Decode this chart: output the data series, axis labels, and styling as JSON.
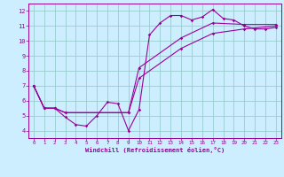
{
  "xlabel": "Windchill (Refroidissement éolien,°C)",
  "bg_color": "#cceeff",
  "line_color": "#990099",
  "grid_color": "#99cccc",
  "xlim": [
    -0.5,
    23.5
  ],
  "ylim": [
    3.5,
    12.5
  ],
  "yticks": [
    4,
    5,
    6,
    7,
    8,
    9,
    10,
    11,
    12
  ],
  "xticks": [
    0,
    1,
    2,
    3,
    4,
    5,
    6,
    7,
    8,
    9,
    10,
    11,
    12,
    13,
    14,
    15,
    16,
    17,
    18,
    19,
    20,
    21,
    22,
    23
  ],
  "curves": [
    {
      "x": [
        0,
        1,
        2,
        3,
        4,
        5,
        6,
        7,
        8,
        9,
        10,
        11,
        12,
        13,
        14,
        15,
        16,
        17,
        18,
        19,
        20,
        21,
        22,
        23
      ],
      "y": [
        7.0,
        5.5,
        5.5,
        4.9,
        4.4,
        4.3,
        5.0,
        5.9,
        5.8,
        4.0,
        5.4,
        10.4,
        11.2,
        11.7,
        11.7,
        11.4,
        11.6,
        12.1,
        11.5,
        11.4,
        11.0,
        10.8,
        10.8,
        10.9
      ]
    },
    {
      "x": [
        0,
        1,
        2,
        3,
        9,
        10,
        14,
        17,
        20,
        23
      ],
      "y": [
        7.0,
        5.5,
        5.5,
        5.2,
        5.2,
        7.5,
        9.5,
        10.5,
        10.8,
        11.0
      ]
    },
    {
      "x": [
        0,
        1,
        2,
        3,
        9,
        10,
        14,
        17,
        20,
        23
      ],
      "y": [
        7.0,
        5.5,
        5.5,
        5.2,
        5.2,
        8.2,
        10.2,
        11.2,
        11.1,
        11.1
      ]
    }
  ]
}
